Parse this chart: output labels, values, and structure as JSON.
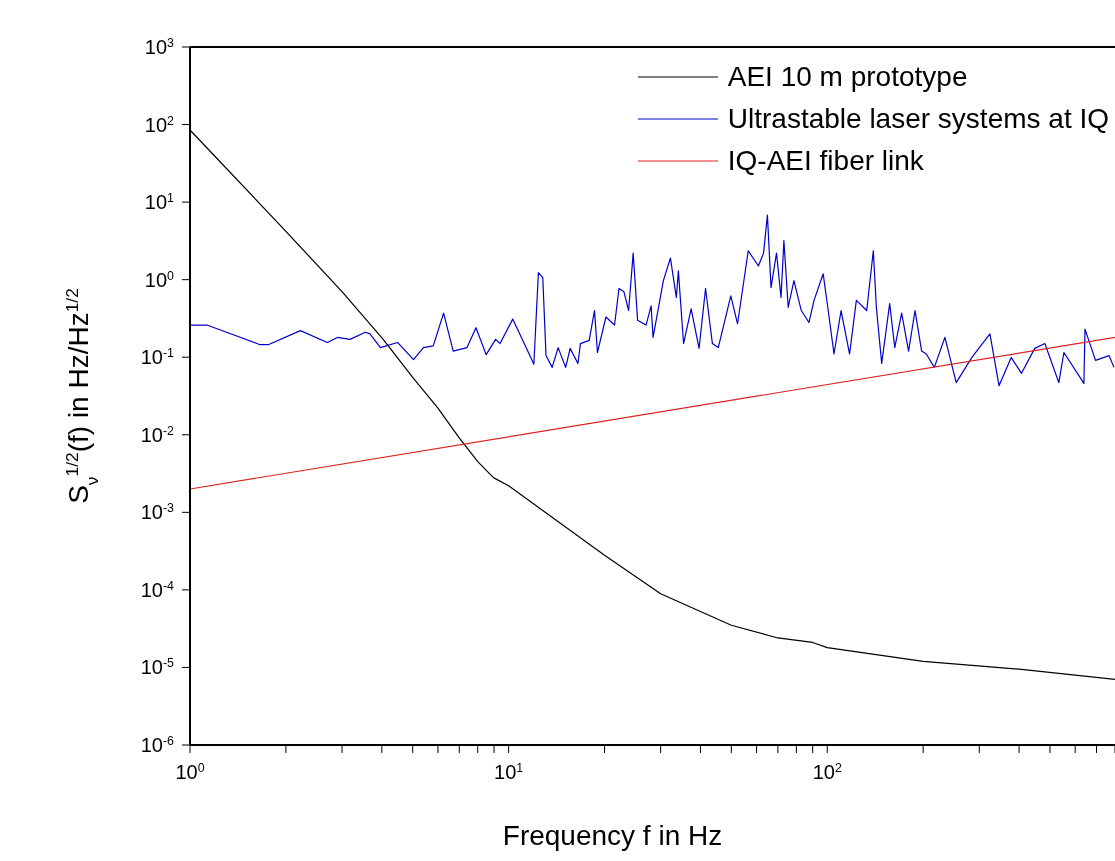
{
  "chart_data": {
    "type": "line",
    "xlabel": "Frequency f in Hz",
    "ylabel": "S$_{ν}$$^{1/2}$(f) in Hz/Hz$^{1/2}$",
    "log": "xy",
    "legend": "top right",
    "marker": "none",
    "line_style": "solid",
    "xlim": [
      1,
      800
    ],
    "ylim": [
      1e-06,
      1000
    ],
    "xticks": [
      {
        "value": 1,
        "label": "10$^{0}$"
      },
      {
        "value": 2,
        "label": null
      },
      {
        "value": 3,
        "label": null
      },
      {
        "value": 4,
        "label": null
      },
      {
        "value": 5,
        "label": null
      },
      {
        "value": 6,
        "label": null
      },
      {
        "value": 7,
        "label": null
      },
      {
        "value": 8,
        "label": null
      },
      {
        "value": 9,
        "label": null
      },
      {
        "value": 10,
        "label": "10$^{1}$"
      },
      {
        "value": 20,
        "label": null
      },
      {
        "value": 30,
        "label": null
      },
      {
        "value": 40,
        "label": null
      },
      {
        "value": 50,
        "label": null
      },
      {
        "value": 60,
        "label": null
      },
      {
        "value": 70,
        "label": null
      },
      {
        "value": 80,
        "label": null
      },
      {
        "value": 90,
        "label": null
      },
      {
        "value": 100,
        "label": "10$^{2}$"
      },
      {
        "value": 200,
        "label": null
      },
      {
        "value": 300,
        "label": null
      },
      {
        "value": 400,
        "label": null
      },
      {
        "value": 500,
        "label": null
      },
      {
        "value": 600,
        "label": null
      },
      {
        "value": 700,
        "label": null
      },
      {
        "value": 800,
        "label": null
      }
    ],
    "yticks": [
      {
        "value": 1e-06,
        "label": "10$^{-6}$"
      },
      {
        "value": 1e-05,
        "label": "10$^{-5}$"
      },
      {
        "value": 0.0001,
        "label": "10$^{-4}$"
      },
      {
        "value": 0.001,
        "label": "10$^{-3}$"
      },
      {
        "value": 0.01,
        "label": "10$^{-2}$"
      },
      {
        "value": 0.1,
        "label": "10$^{-1}$"
      },
      {
        "value": 1,
        "label": "10$^{0}$"
      },
      {
        "value": 10,
        "label": "10$^{1}$"
      },
      {
        "value": 100,
        "label": "10$^{2}$"
      },
      {
        "value": 1000,
        "label": "10$^{3}$"
      }
    ],
    "series": [
      {
        "name": "AEI 10 m prototype",
        "color": "#000000",
        "x": [
          1,
          2,
          3,
          4.04,
          5,
          6,
          6.97,
          8,
          8.96,
          10,
          20,
          30,
          50,
          70,
          90,
          100,
          200,
          400,
          800
        ],
        "values": [
          85,
          4.2,
          0.7,
          0.17,
          0.055,
          0.022,
          0.0093,
          0.0045,
          0.0028,
          0.0022,
          0.00028,
          8.9e-05,
          3.5e-05,
          2.4e-05,
          2.1e-05,
          1.8e-05,
          1.2e-05,
          9.5e-06,
          7e-06
        ]
      },
      {
        "name": "Ultrastable laser systems at IQ",
        "color": "#0000cc",
        "x": [
          1,
          1.13,
          1.66,
          1.76,
          2.22,
          2.7,
          2.9,
          3.18,
          3.55,
          3.67,
          3.96,
          4.48,
          5.03,
          5.4,
          5.8,
          6.25,
          6.7,
          7.4,
          7.9,
          8.5,
          9.1,
          9.4,
          10.3,
          11.6,
          12,
          12.4,
          12.8,
          13.1,
          13.7,
          14.3,
          15.1,
          15.6,
          16.5,
          16.8,
          17.9,
          18.6,
          19,
          20.2,
          21.5,
          22.2,
          23,
          23.8,
          24.6,
          25.4,
          27,
          28,
          28.4,
          30.6,
          32.2,
          33.6,
          34.1,
          35.4,
          37.4,
          39.6,
          41.5,
          43.6,
          45.5,
          49.8,
          52.3,
          56.5,
          60.8,
          63.1,
          64.9,
          66.6,
          69.3,
          71.6,
          73.1,
          75.4,
          78.6,
          82.9,
          87.6,
          90.9,
          97.1,
          100.7,
          105,
          110.5,
          117.5,
          123.4,
          133,
          139.5,
          142.6,
          148.2,
          157,
          162.9,
          171.2,
          180,
          188.6,
          197.8,
          204.6,
          216.8,
          234,
          254,
          284,
          324,
          346,
          378,
          407,
          448,
          482,
          533,
          553,
          639,
          644,
          695,
          766,
          794
        ],
        "values": [
          0.26,
          0.26,
          0.145,
          0.145,
          0.22,
          0.155,
          0.18,
          0.17,
          0.21,
          0.2,
          0.133,
          0.155,
          0.093,
          0.133,
          0.14,
          0.37,
          0.12,
          0.133,
          0.24,
          0.108,
          0.17,
          0.15,
          0.31,
          0.11,
          0.081,
          1.23,
          1.06,
          0.105,
          0.074,
          0.133,
          0.074,
          0.13,
          0.083,
          0.15,
          0.165,
          0.4,
          0.115,
          0.33,
          0.26,
          0.77,
          0.7,
          0.4,
          2.2,
          0.3,
          0.26,
          0.46,
          0.18,
          0.97,
          1.9,
          0.59,
          1.3,
          0.15,
          0.42,
          0.13,
          0.77,
          0.15,
          0.133,
          0.62,
          0.27,
          2.36,
          1.5,
          2.2,
          6.8,
          0.79,
          2.2,
          0.59,
          3.2,
          0.44,
          0.97,
          0.4,
          0.28,
          0.54,
          1.19,
          0.4,
          0.11,
          0.4,
          0.11,
          0.54,
          0.4,
          2.36,
          0.44,
          0.083,
          0.49,
          0.133,
          0.37,
          0.12,
          0.4,
          0.12,
          0.11,
          0.074,
          0.18,
          0.047,
          0.099,
          0.2,
          0.043,
          0.099,
          0.062,
          0.13,
          0.15,
          0.047,
          0.115,
          0.046,
          0.23,
          0.091,
          0.105,
          0.074
        ]
      },
      {
        "name": "IQ-AEI fiber link",
        "color": "#dd2222",
        "x": [
          1,
          800
        ],
        "values": [
          0.002,
          0.18
        ]
      }
    ]
  }
}
